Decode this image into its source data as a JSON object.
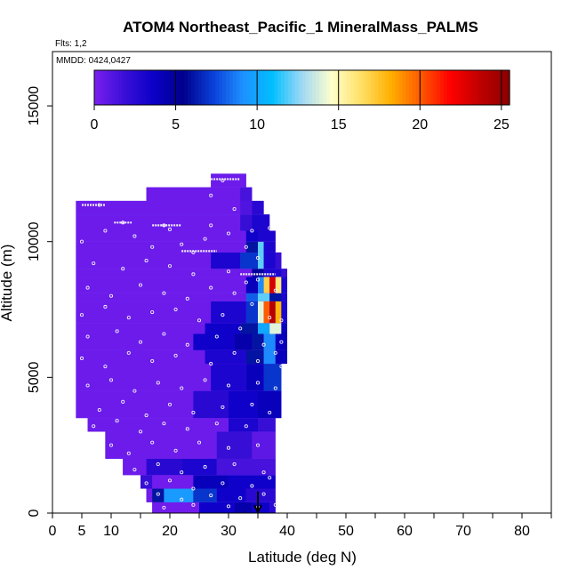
{
  "chart_data": {
    "type": "heatmap",
    "title": "ATOM4 Northeast_Pacific_1 MineralMass_PALMS",
    "flights_note": "Flts: 1,2",
    "date_note": "MMDD: 0424,0427",
    "xlabel": "Latitude (deg N)",
    "ylabel": "Altitude (m)",
    "xlim": [
      0,
      85
    ],
    "ylim": [
      0,
      17000
    ],
    "x_ticks": [
      0,
      5,
      10,
      20,
      30,
      40,
      50,
      60,
      70,
      80
    ],
    "x_minor_ticks": [
      15,
      25,
      35,
      45,
      55,
      65,
      75,
      85
    ],
    "y_ticks": [
      0,
      5000,
      10000,
      15000
    ],
    "colorbar": {
      "range": [
        0,
        25.5
      ],
      "ticks": [
        0,
        5,
        10,
        15,
        20,
        25
      ],
      "colors": [
        "#7a1ff0",
        "#3b0fd8",
        "#0b00c8",
        "#00008b",
        "#0a3fd8",
        "#1e90ff",
        "#00bfff",
        "#9fd8f5",
        "#ffffcc",
        "#ffe066",
        "#ffb000",
        "#ff5a00",
        "#ff0000",
        "#c00000",
        "#8b0000"
      ]
    },
    "background_value": 0.4,
    "rows": [
      {
        "y0": 0,
        "y1": 400,
        "x0": 17,
        "x1": 38,
        "cells": [
          [
            17,
            25,
            0.3
          ],
          [
            25,
            31,
            3.5
          ],
          [
            31,
            34,
            4.5
          ],
          [
            34,
            37,
            3.5
          ],
          [
            37,
            38,
            2.5
          ]
        ]
      },
      {
        "y0": 400,
        "y1": 900,
        "x0": 16,
        "x1": 38,
        "cells": [
          [
            16,
            17,
            0.3
          ],
          [
            17,
            19,
            6
          ],
          [
            19,
            24,
            9.5
          ],
          [
            24,
            28,
            7
          ],
          [
            28,
            33,
            3.5
          ],
          [
            33,
            38,
            2.5
          ]
        ]
      },
      {
        "y0": 900,
        "y1": 1400,
        "x0": 15,
        "x1": 38,
        "cells": [
          [
            15,
            17,
            2
          ],
          [
            17,
            24,
            0.3
          ],
          [
            24,
            30,
            4
          ],
          [
            30,
            38,
            3.5
          ]
        ]
      },
      {
        "y0": 1400,
        "y1": 2000,
        "x0": 12,
        "x1": 38,
        "cells": [
          [
            12,
            16,
            0.4
          ],
          [
            16,
            22,
            2.5
          ],
          [
            22,
            28,
            3
          ],
          [
            28,
            38,
            1.5
          ]
        ]
      },
      {
        "y0": 2000,
        "y1": 3000,
        "x0": 9,
        "x1": 38,
        "cells": [
          [
            9,
            28,
            0.4
          ],
          [
            28,
            34,
            2
          ],
          [
            34,
            38,
            0.8
          ]
        ]
      },
      {
        "y0": 3000,
        "y1": 3500,
        "x0": 6,
        "x1": 38,
        "cells": [
          [
            6,
            30,
            0.4
          ],
          [
            30,
            35,
            3
          ],
          [
            35,
            38,
            2
          ]
        ]
      },
      {
        "y0": 3500,
        "y1": 4500,
        "x0": 4,
        "x1": 39,
        "cells": [
          [
            4,
            24,
            0.4
          ],
          [
            24,
            30,
            2.5
          ],
          [
            30,
            35,
            3.5
          ],
          [
            35,
            39,
            4
          ]
        ]
      },
      {
        "y0": 4500,
        "y1": 5500,
        "x0": 4,
        "x1": 39,
        "cells": [
          [
            4,
            27,
            0.4
          ],
          [
            27,
            33,
            3
          ],
          [
            33,
            36,
            4
          ],
          [
            36,
            39,
            7
          ]
        ]
      },
      {
        "y0": 5500,
        "y1": 6000,
        "x0": 4,
        "x1": 40,
        "cells": [
          [
            4,
            26,
            0.4
          ],
          [
            26,
            33,
            3
          ],
          [
            33,
            36,
            6
          ],
          [
            36,
            38,
            9
          ],
          [
            38,
            40,
            4
          ]
        ]
      },
      {
        "y0": 6000,
        "y1": 6600,
        "x0": 4,
        "x1": 40,
        "cells": [
          [
            4,
            24,
            0.4
          ],
          [
            24,
            31,
            3.5
          ],
          [
            31,
            34,
            4.5
          ],
          [
            34,
            36,
            6
          ],
          [
            36,
            38,
            9
          ],
          [
            38,
            40,
            4
          ]
        ]
      },
      {
        "y0": 6600,
        "y1": 7000,
        "x0": 4,
        "x1": 40,
        "cells": [
          [
            4,
            26,
            0.4
          ],
          [
            26,
            32,
            3.5
          ],
          [
            32,
            35,
            6
          ],
          [
            35,
            37,
            10
          ],
          [
            37,
            39,
            14
          ],
          [
            39,
            40,
            4
          ]
        ]
      },
      {
        "y0": 7000,
        "y1": 7800,
        "x0": 4,
        "x1": 40,
        "cells": [
          [
            4,
            27,
            0.4
          ],
          [
            27,
            33,
            3
          ],
          [
            33,
            35,
            7
          ],
          [
            35,
            36,
            14
          ],
          [
            36,
            37,
            20
          ],
          [
            37,
            38,
            24
          ],
          [
            38,
            39,
            18
          ],
          [
            39,
            40,
            3
          ]
        ]
      },
      {
        "y0": 7800,
        "y1": 8100,
        "x0": 4,
        "x1": 40,
        "cells": [
          [
            4,
            33,
            0.4
          ],
          [
            33,
            35,
            8
          ],
          [
            35,
            37,
            12
          ],
          [
            37,
            39,
            6
          ],
          [
            39,
            40,
            3
          ]
        ]
      },
      {
        "y0": 8100,
        "y1": 8700,
        "x0": 4,
        "x1": 40,
        "cells": [
          [
            4,
            33,
            0.4
          ],
          [
            33,
            35,
            4
          ],
          [
            35,
            36,
            9
          ],
          [
            36,
            37,
            17
          ],
          [
            37,
            38,
            23
          ],
          [
            38,
            39,
            16
          ],
          [
            39,
            40,
            3
          ]
        ]
      },
      {
        "y0": 8700,
        "y1": 9000,
        "x0": 4,
        "x1": 40,
        "cells": [
          [
            4,
            34,
            0.4
          ],
          [
            34,
            36,
            5
          ],
          [
            36,
            39,
            3
          ],
          [
            39,
            40,
            2
          ]
        ]
      },
      {
        "y0": 9000,
        "y1": 9600,
        "x0": 4,
        "x1": 39,
        "cells": [
          [
            4,
            27,
            0.4
          ],
          [
            27,
            32,
            3
          ],
          [
            32,
            35,
            7
          ],
          [
            35,
            36,
            12
          ],
          [
            36,
            38,
            3
          ],
          [
            38,
            39,
            2
          ]
        ]
      },
      {
        "y0": 9600,
        "y1": 10000,
        "x0": 4,
        "x1": 38,
        "cells": [
          [
            4,
            33,
            0.4
          ],
          [
            33,
            35,
            6
          ],
          [
            35,
            36,
            12
          ],
          [
            36,
            38,
            3
          ]
        ]
      },
      {
        "y0": 10000,
        "y1": 10400,
        "x0": 4,
        "x1": 38,
        "cells": [
          [
            4,
            33,
            0.4
          ],
          [
            33,
            35,
            3.5
          ],
          [
            35,
            38,
            3
          ]
        ]
      },
      {
        "y0": 10400,
        "y1": 11000,
        "x0": 4,
        "x1": 37,
        "cells": [
          [
            4,
            32,
            0.4
          ],
          [
            32,
            34,
            2
          ],
          [
            34,
            37,
            3
          ]
        ]
      },
      {
        "y0": 11000,
        "y1": 11500,
        "x0": 4,
        "x1": 36,
        "cells": [
          [
            4,
            32,
            0.4
          ],
          [
            32,
            34,
            1.2
          ],
          [
            34,
            36,
            2.5
          ]
        ]
      },
      {
        "y0": 11500,
        "y1": 12000,
        "x0": 16,
        "x1": 34,
        "cells": [
          [
            16,
            32,
            0.4
          ],
          [
            32,
            34,
            1.5
          ]
        ]
      },
      {
        "y0": 12000,
        "y1": 12500,
        "x0": 27,
        "x1": 33,
        "cells": [
          [
            27,
            33,
            0.4
          ]
        ]
      }
    ],
    "sample_tracks": [
      {
        "x0": 5,
        "x1": 9,
        "y": 11350
      },
      {
        "x0": 10.5,
        "x1": 13.5,
        "y": 10700
      },
      {
        "x0": 17,
        "x1": 22,
        "y": 10600
      },
      {
        "x0": 22,
        "x1": 28,
        "y": 9650
      },
      {
        "x0": 27,
        "x1": 32,
        "y": 12300
      },
      {
        "x0": 32,
        "x1": 38,
        "y": 8800
      }
    ],
    "sample_points": [
      [
        8,
        11350
      ],
      [
        12,
        10700
      ],
      [
        19,
        10600
      ],
      [
        20,
        10450
      ],
      [
        24,
        9600
      ],
      [
        29,
        12250
      ],
      [
        31,
        11200
      ],
      [
        27,
        11700
      ],
      [
        27,
        10600
      ],
      [
        30,
        10300
      ],
      [
        34,
        10400
      ],
      [
        37,
        10500
      ],
      [
        33,
        9800
      ],
      [
        35,
        9400
      ],
      [
        5,
        10000
      ],
      [
        9,
        10400
      ],
      [
        14,
        10200
      ],
      [
        17,
        9800
      ],
      [
        22,
        9900
      ],
      [
        26,
        10100
      ],
      [
        7,
        9200
      ],
      [
        12,
        9000
      ],
      [
        16,
        9300
      ],
      [
        20,
        9100
      ],
      [
        24,
        8800
      ],
      [
        30,
        8900
      ],
      [
        33,
        8500
      ],
      [
        6,
        8300
      ],
      [
        10,
        8000
      ],
      [
        15,
        8400
      ],
      [
        19,
        8100
      ],
      [
        23,
        7900
      ],
      [
        27,
        8300
      ],
      [
        31,
        8100
      ],
      [
        35,
        8600
      ],
      [
        38,
        8200
      ],
      [
        5,
        7300
      ],
      [
        9,
        7600
      ],
      [
        13,
        7200
      ],
      [
        17,
        7400
      ],
      [
        21,
        7500
      ],
      [
        25,
        7100
      ],
      [
        29,
        7300
      ],
      [
        34,
        7700
      ],
      [
        37,
        7200
      ],
      [
        39,
        7100
      ],
      [
        6,
        6500
      ],
      [
        11,
        6700
      ],
      [
        15,
        6300
      ],
      [
        19,
        6600
      ],
      [
        23,
        6200
      ],
      [
        28,
        6500
      ],
      [
        32,
        6800
      ],
      [
        36,
        6200
      ],
      [
        39,
        6300
      ],
      [
        5,
        5700
      ],
      [
        9,
        5400
      ],
      [
        13,
        5900
      ],
      [
        17,
        5600
      ],
      [
        21,
        5800
      ],
      [
        27,
        5500
      ],
      [
        31,
        5900
      ],
      [
        35,
        5600
      ],
      [
        38,
        5900
      ],
      [
        39,
        5400
      ],
      [
        6,
        4700
      ],
      [
        10,
        4900
      ],
      [
        14,
        4500
      ],
      [
        18,
        4800
      ],
      [
        22,
        4600
      ],
      [
        26,
        4900
      ],
      [
        30,
        4700
      ],
      [
        35,
        4800
      ],
      [
        38,
        4600
      ],
      [
        8,
        3800
      ],
      [
        12,
        4100
      ],
      [
        16,
        3600
      ],
      [
        20,
        4000
      ],
      [
        24,
        3700
      ],
      [
        29,
        3900
      ],
      [
        34,
        4000
      ],
      [
        37,
        3700
      ],
      [
        7,
        3200
      ],
      [
        11,
        3400
      ],
      [
        15,
        3000
      ],
      [
        19,
        3300
      ],
      [
        23,
        3100
      ],
      [
        28,
        3300
      ],
      [
        33,
        3200
      ],
      [
        10,
        2500
      ],
      [
        13,
        2200
      ],
      [
        17,
        2600
      ],
      [
        21,
        2300
      ],
      [
        25,
        2600
      ],
      [
        30,
        2400
      ],
      [
        35,
        2500
      ],
      [
        14,
        1600
      ],
      [
        18,
        1800
      ],
      [
        22,
        1500
      ],
      [
        26,
        1700
      ],
      [
        31,
        1800
      ],
      [
        36,
        1500
      ],
      [
        16,
        1100
      ],
      [
        20,
        1200
      ],
      [
        24,
        900
      ],
      [
        29,
        1100
      ],
      [
        34,
        1000
      ],
      [
        37,
        1300
      ],
      [
        18,
        700
      ],
      [
        22,
        500
      ],
      [
        27,
        650
      ],
      [
        32,
        550
      ],
      [
        36,
        700
      ],
      [
        19,
        200
      ],
      [
        24,
        300
      ],
      [
        30,
        250
      ],
      [
        35,
        200
      ],
      [
        38,
        300
      ]
    ],
    "arrow": {
      "x": 35,
      "y_from": 800,
      "y_to": 0
    }
  }
}
